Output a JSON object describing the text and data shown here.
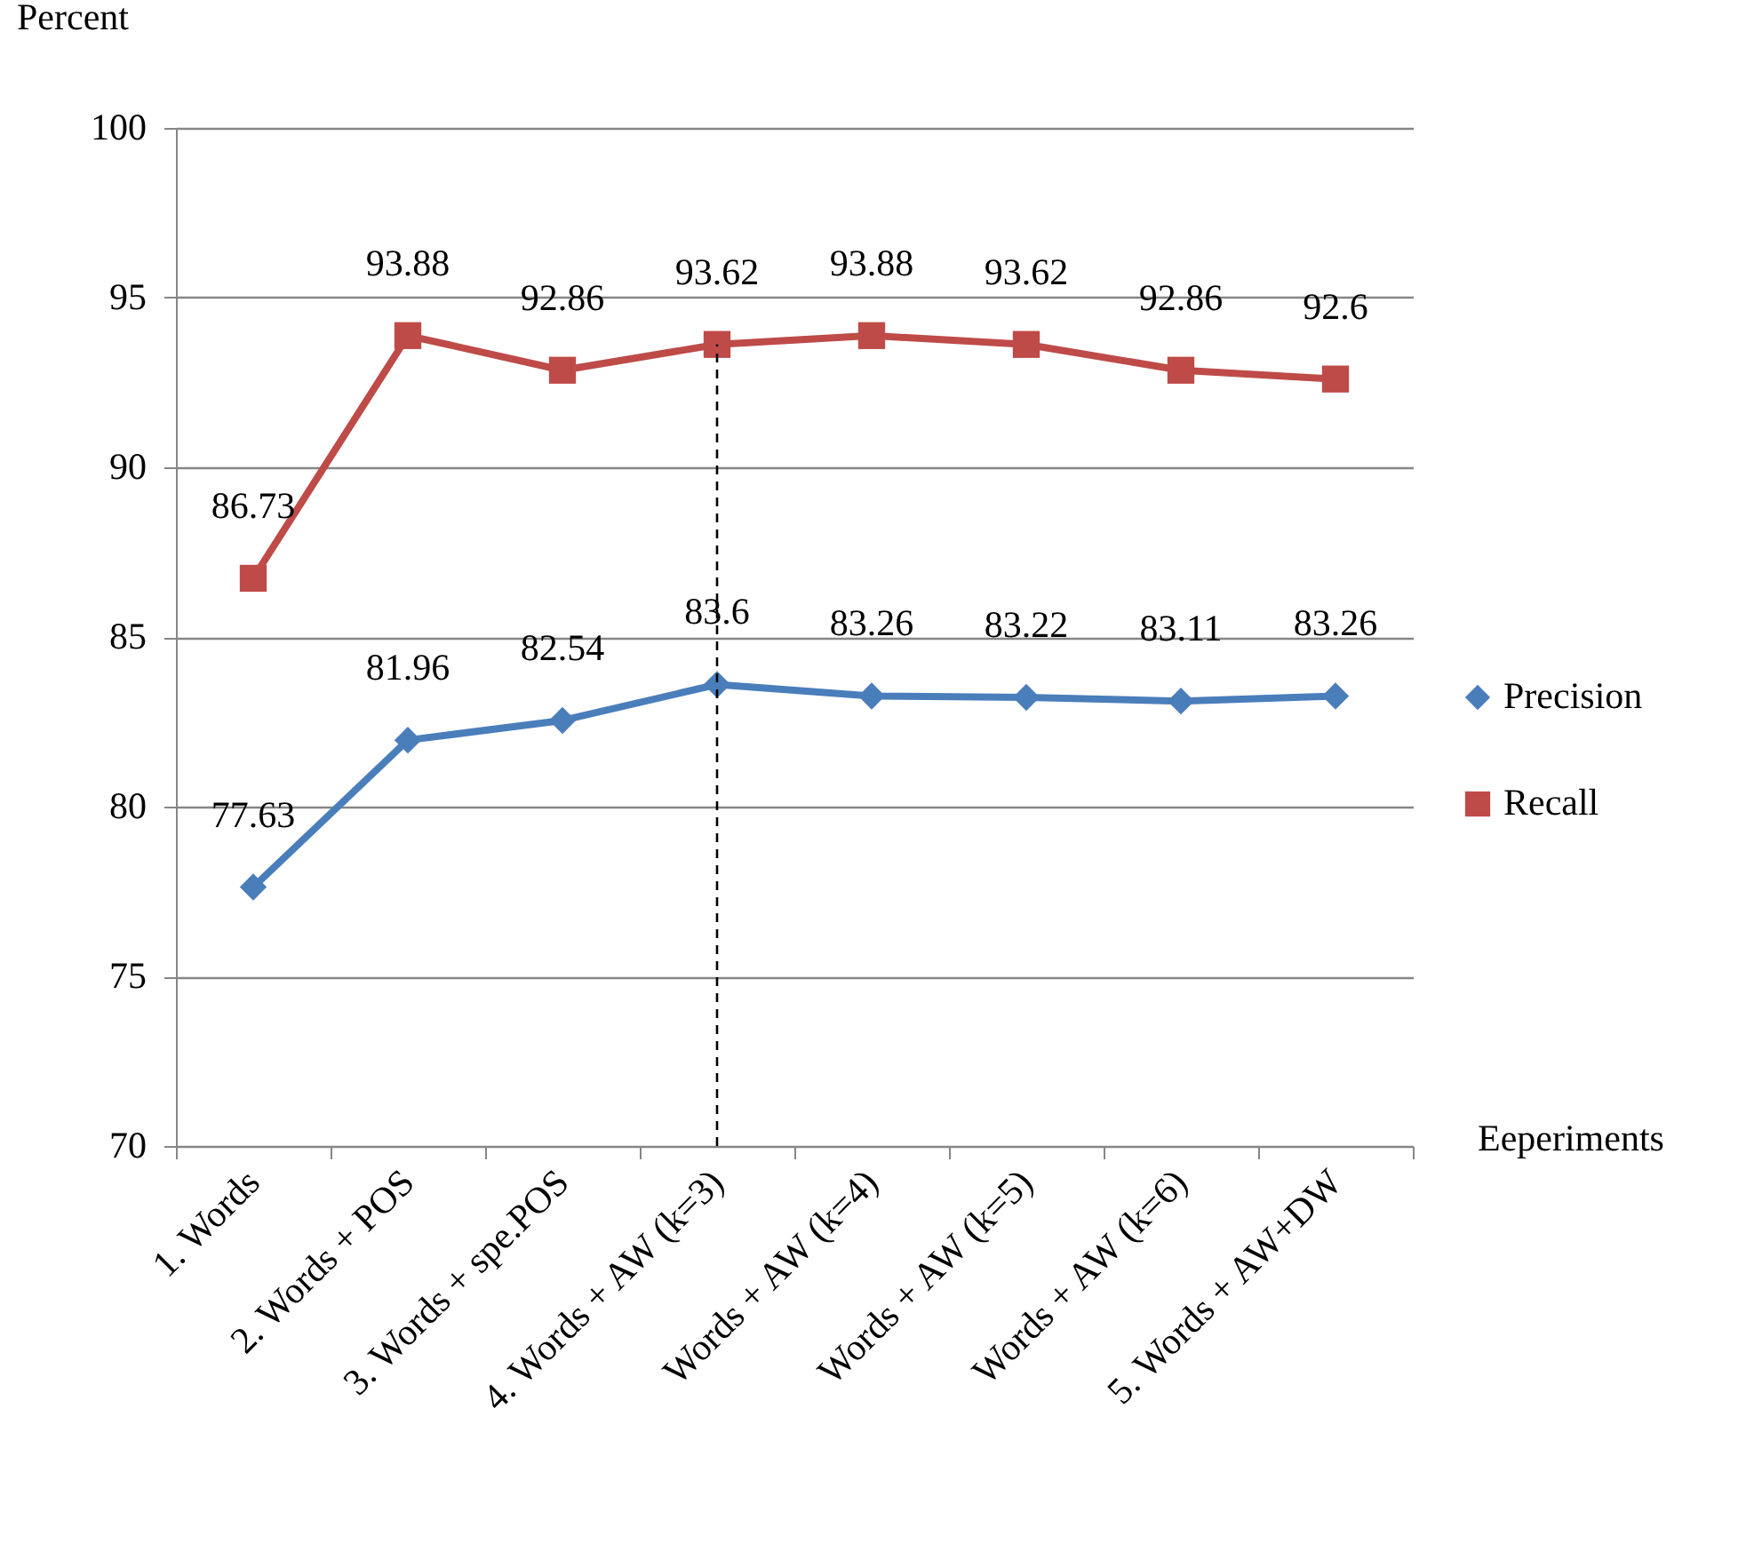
{
  "chart_data": {
    "type": "line",
    "ylabel": "Percent",
    "xlabel": "Eeperiments",
    "categories": [
      "1. Words",
      "2. Words + POS",
      "3. Words + spe.POS",
      "4. Words + AW (k=3)",
      "Words + AW (k=4)",
      "Words + AW (k=5)",
      "Words  + AW (k=6)",
      "5. Words + AW+DW"
    ],
    "series": [
      {
        "name": "Precision",
        "color": "#4a7ebb",
        "marker": "diamond",
        "values": [
          77.63,
          81.96,
          82.54,
          83.6,
          83.26,
          83.22,
          83.11,
          83.26
        ]
      },
      {
        "name": "Recall",
        "color": "#be4b48",
        "marker": "square",
        "values": [
          86.73,
          93.88,
          92.86,
          93.62,
          93.88,
          93.62,
          92.86,
          92.6
        ]
      }
    ],
    "ylim": [
      70,
      100
    ],
    "yticks": [
      70,
      75,
      80,
      85,
      90,
      95,
      100
    ],
    "grid": "y",
    "legend": "right",
    "data_labels": true,
    "ref_lines": [
      {
        "axis": "x",
        "value": "4. Words + AW (k=3)",
        "line_style": "dashed",
        "color": "#000000"
      }
    ]
  }
}
